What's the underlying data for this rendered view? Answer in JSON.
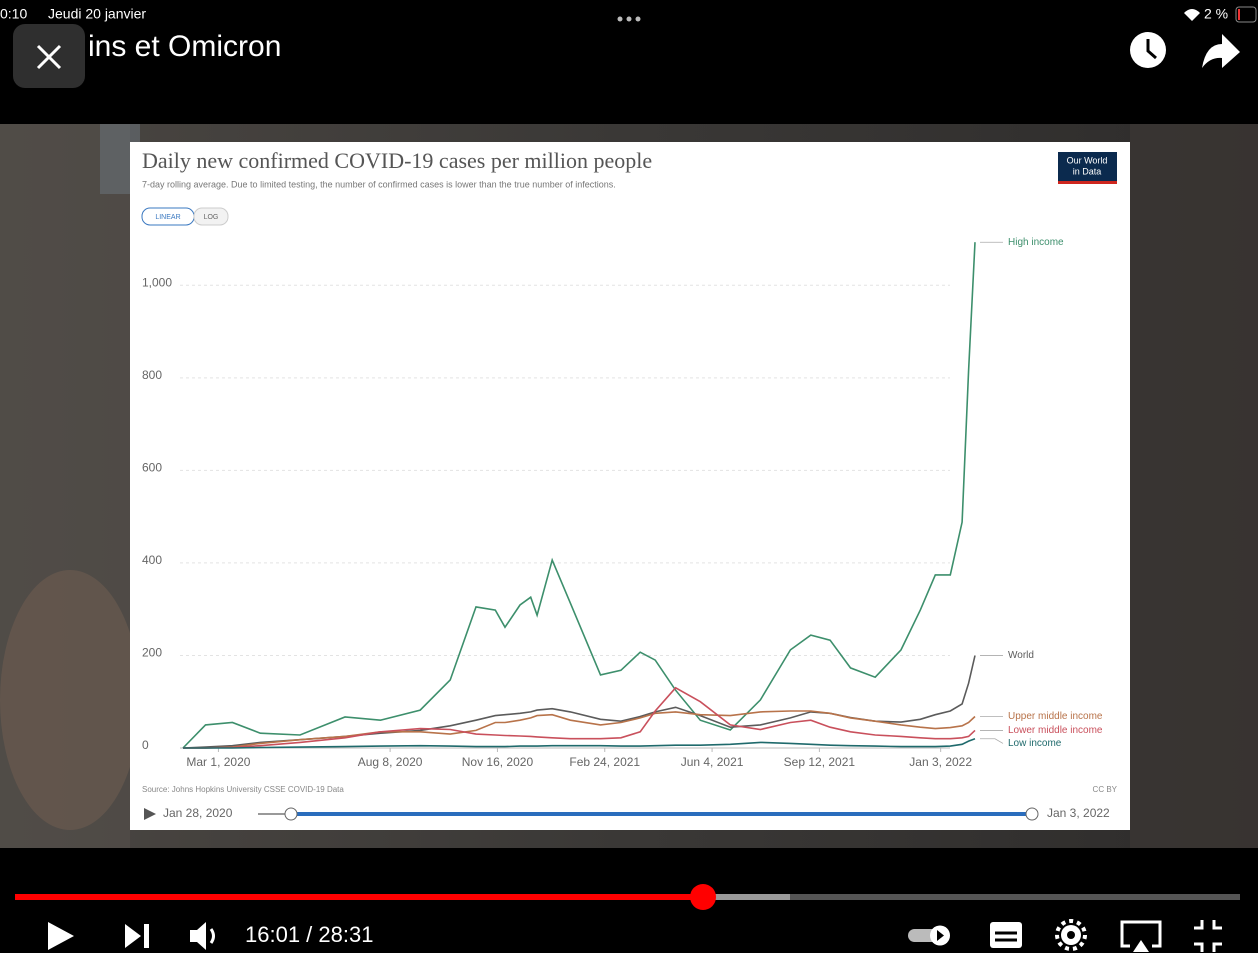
{
  "status_bar": {
    "time": "0:10",
    "date": "Jeudi 20 janvier",
    "battery": "2 %"
  },
  "video": {
    "title": "ins et Omicron",
    "time": "16:01 / 28:31"
  },
  "chart_data": {
    "type": "line",
    "title": "Daily new confirmed COVID-19 cases per million people",
    "subtitle": "7-day rolling average. Due to limited testing, the number of confirmed cases is lower than the true number of infections.",
    "scale_buttons": [
      "LINEAR",
      "LOG"
    ],
    "logo": [
      "Our World",
      "in Data"
    ],
    "source": "Source: Johns Hopkins University CSSE COVID-19 Data",
    "license": "CC BY",
    "slider": {
      "start": "Jan 28, 2020",
      "end": "Jan 3, 2022"
    },
    "x": [
      "2020-01-28",
      "2020-02-18",
      "2020-03-14",
      "2020-04-09",
      "2020-05-16",
      "2020-06-27",
      "2020-07-30",
      "2020-09-05",
      "2020-10-03",
      "2020-10-27",
      "2020-11-14",
      "2020-11-23",
      "2020-12-07",
      "2020-12-17",
      "2020-12-23",
      "2021-01-06",
      "2021-01-23",
      "2021-02-20",
      "2021-03-11",
      "2021-03-29",
      "2021-04-12",
      "2021-05-01",
      "2021-05-24",
      "2021-06-21",
      "2021-07-19",
      "2021-08-16",
      "2021-09-04",
      "2021-09-22",
      "2021-10-11",
      "2021-11-03",
      "2021-11-27",
      "2021-12-15",
      "2021-12-29",
      "2022-01-12",
      "2022-01-23",
      "2022-01-29",
      "2022-02-04"
    ],
    "xlim": [
      "2020-01-28",
      "2022-02-04"
    ],
    "xticks": [
      {
        "value": "2020-03-01",
        "label": "Mar 1, 2020"
      },
      {
        "value": "2020-08-08",
        "label": "Aug 8, 2020"
      },
      {
        "value": "2020-11-16",
        "label": "Nov 16, 2020"
      },
      {
        "value": "2021-02-24",
        "label": "Feb 24, 2021"
      },
      {
        "value": "2021-06-04",
        "label": "Jun 4, 2021"
      },
      {
        "value": "2021-09-12",
        "label": "Sep 12, 2021"
      },
      {
        "value": "2022-01-03",
        "label": "Jan 3, 2022"
      }
    ],
    "ylim": [
      0,
      1100
    ],
    "yticks": [
      0,
      200,
      400,
      600,
      800,
      {
        "value": 1000,
        "label": "1,000"
      }
    ],
    "grid": true,
    "series": [
      {
        "name": "High income",
        "color": "#3d8f6c",
        "values": [
          0,
          50,
          55,
          32,
          28,
          67,
          60,
          82,
          147,
          305,
          298,
          261,
          309,
          326,
          287,
          406,
          313,
          158,
          168,
          207,
          190,
          125,
          60,
          39,
          104,
          212,
          244,
          233,
          173,
          153,
          212,
          298,
          374,
          374,
          488,
          816,
          1093
        ]
      },
      {
        "name": "World",
        "color": "#5b5b5b",
        "values": [
          0,
          2,
          5,
          12,
          18,
          25,
          32,
          38,
          48,
          60,
          70,
          72,
          75,
          78,
          82,
          85,
          78,
          62,
          58,
          68,
          78,
          88,
          70,
          45,
          50,
          65,
          78,
          75,
          66,
          58,
          56,
          62,
          72,
          80,
          95,
          140,
          200
        ]
      },
      {
        "name": "Upper middle income",
        "color": "#b8734a",
        "values": [
          0,
          0,
          2,
          10,
          18,
          25,
          35,
          35,
          30,
          38,
          55,
          55,
          60,
          65,
          70,
          72,
          60,
          50,
          55,
          65,
          75,
          78,
          72,
          70,
          78,
          80,
          80,
          75,
          65,
          58,
          50,
          45,
          42,
          44,
          48,
          55,
          68
        ]
      },
      {
        "name": "Lower middle income",
        "color": "#c9505c",
        "values": [
          0,
          0,
          1,
          5,
          12,
          22,
          35,
          42,
          40,
          30,
          28,
          27,
          26,
          25,
          24,
          22,
          20,
          20,
          22,
          35,
          80,
          130,
          100,
          50,
          40,
          55,
          60,
          45,
          35,
          28,
          25,
          22,
          20,
          20,
          22,
          25,
          38
        ]
      },
      {
        "name": "Low income",
        "color": "#1f6a6c",
        "values": [
          0,
          0,
          0,
          1,
          2,
          3,
          4,
          5,
          4,
          3,
          3,
          3,
          4,
          4,
          4,
          5,
          5,
          5,
          4,
          4,
          5,
          6,
          6,
          8,
          12,
          10,
          8,
          6,
          5,
          4,
          3,
          3,
          3,
          4,
          8,
          15,
          20
        ]
      }
    ]
  }
}
